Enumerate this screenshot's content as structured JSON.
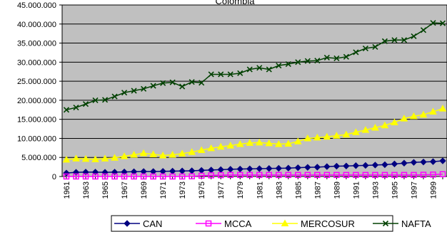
{
  "chart_data": {
    "type": "line",
    "title": "Colombia",
    "xlabel": "",
    "ylabel": "",
    "x": [
      1961,
      1962,
      1963,
      1964,
      1965,
      1966,
      1967,
      1968,
      1969,
      1970,
      1971,
      1972,
      1973,
      1974,
      1975,
      1976,
      1977,
      1978,
      1979,
      1980,
      1981,
      1982,
      1983,
      1984,
      1985,
      1986,
      1987,
      1988,
      1989,
      1990,
      1991,
      1992,
      1993,
      1994,
      1995,
      1996,
      1997,
      1998,
      1999,
      2000
    ],
    "x_tick_labels": [
      "1961",
      "1963",
      "1965",
      "1967",
      "1969",
      "1971",
      "1973",
      "1975",
      "1977",
      "1979",
      "1981",
      "1983",
      "1985",
      "1987",
      "1989",
      "1991",
      "1993",
      "1995",
      "1997",
      "1999"
    ],
    "y_tick_labels": [
      "0",
      "5.000.000",
      "10.000.000",
      "15.000.000",
      "20.000.000",
      "25.000.000",
      "30.000.000",
      "35.000.000",
      "40.000.000",
      "45.000.000"
    ],
    "ylim": [
      0,
      45000000
    ],
    "grid": true,
    "legend_position": "bottom",
    "plot_background": "#c0c0c0",
    "series": [
      {
        "name": "CAN",
        "color": "#000080",
        "marker": "diamond",
        "values": [
          900000,
          1100000,
          1150000,
          1150000,
          1100000,
          1150000,
          1200000,
          1250000,
          1300000,
          1300000,
          1350000,
          1400000,
          1450000,
          1500000,
          1600000,
          1700000,
          1800000,
          1900000,
          1950000,
          2000000,
          2050000,
          2100000,
          2150000,
          2200000,
          2300000,
          2400000,
          2450000,
          2600000,
          2700000,
          2750000,
          2850000,
          2900000,
          3000000,
          3100000,
          3300000,
          3500000,
          3700000,
          3800000,
          3900000,
          4100000
        ]
      },
      {
        "name": "MCCA",
        "color": "#ff00ff",
        "marker": "square",
        "values": [
          0,
          0,
          0,
          0,
          0,
          0,
          0,
          0,
          0,
          0,
          0,
          0,
          0,
          50000,
          200000,
          300000,
          350000,
          400000,
          400000,
          400000,
          400000,
          400000,
          400000,
          400000,
          400000,
          400000,
          400000,
          400000,
          400000,
          400000,
          400000,
          400000,
          400000,
          400000,
          400000,
          400000,
          400000,
          450000,
          500000,
          600000
        ]
      },
      {
        "name": "MERCOSUR",
        "color": "#ffff00",
        "marker": "triangle",
        "values": [
          4400000,
          4700000,
          4600000,
          4500000,
          4700000,
          4900000,
          5300000,
          5700000,
          6100000,
          5800000,
          5500000,
          5700000,
          6000000,
          6400000,
          6900000,
          7400000,
          7800000,
          8100000,
          8500000,
          8800000,
          8900000,
          8700000,
          8500000,
          8600000,
          9200000,
          10000000,
          10200000,
          10400000,
          10700000,
          11000000,
          11600000,
          12200000,
          12800000,
          13400000,
          14200000,
          15200000,
          15800000,
          16200000,
          17000000,
          17800000
        ]
      },
      {
        "name": "NAFTA",
        "color": "#004000",
        "marker": "x",
        "values": [
          17500000,
          18100000,
          19000000,
          20000000,
          20100000,
          21000000,
          22000000,
          22500000,
          23000000,
          23800000,
          24500000,
          24700000,
          23600000,
          24800000,
          24600000,
          26800000,
          26800000,
          26800000,
          27100000,
          28100000,
          28500000,
          28100000,
          29100000,
          29500000,
          30000000,
          30300000,
          30400000,
          31200000,
          31000000,
          31400000,
          32600000,
          33600000,
          34000000,
          35500000,
          35800000,
          35800000,
          36800000,
          38400000,
          40300000,
          40200000
        ]
      }
    ]
  }
}
